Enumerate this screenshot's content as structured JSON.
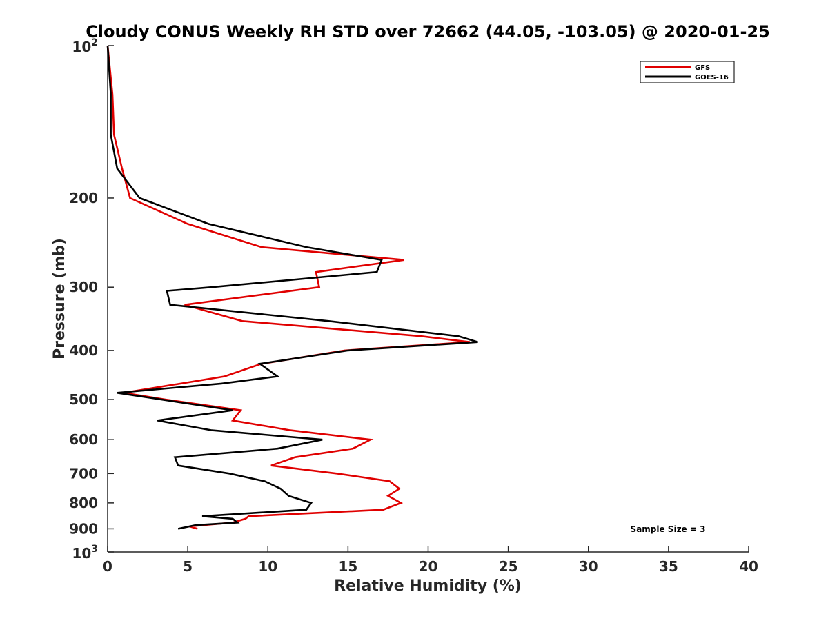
{
  "chart_data": {
    "type": "line",
    "title": "Cloudy CONUS Weekly RH STD over 72662 (44.05, -103.05) @ 2020-01-25",
    "xlabel": "Relative Humidity (%)",
    "ylabel": "Pressure (mb)",
    "xlim": [
      0,
      40
    ],
    "ylim": [
      100,
      1000
    ],
    "y_scale": "log",
    "y_reversed": true,
    "grid": false,
    "legend_position": "top-right",
    "x_ticks": [
      "0",
      "5",
      "10",
      "15",
      "20",
      "25",
      "30",
      "35",
      "40"
    ],
    "y_ticks": [
      {
        "value": 100,
        "base": "10",
        "exp": "2"
      },
      {
        "value": 200,
        "label": "200"
      },
      {
        "value": 300,
        "label": "300"
      },
      {
        "value": 400,
        "label": "400"
      },
      {
        "value": 500,
        "label": "500"
      },
      {
        "value": 600,
        "label": "600"
      },
      {
        "value": 700,
        "label": "700"
      },
      {
        "value": 800,
        "label": "800"
      },
      {
        "value": 900,
        "label": "900"
      },
      {
        "value": 1000,
        "base": "10",
        "exp": "3"
      }
    ],
    "annotation": "Sample Size = 3",
    "series": [
      {
        "name": "GFS",
        "color": "#e00000",
        "points": [
          [
            0.0,
            100
          ],
          [
            0.3,
            125
          ],
          [
            0.4,
            150
          ],
          [
            0.9,
            175
          ],
          [
            1.4,
            200
          ],
          [
            5.0,
            225
          ],
          [
            9.6,
            250
          ],
          [
            18.5,
            265
          ],
          [
            13.0,
            280
          ],
          [
            13.2,
            300
          ],
          [
            4.8,
            325
          ],
          [
            8.4,
            350
          ],
          [
            19.6,
            375
          ],
          [
            22.6,
            385
          ],
          [
            14.8,
            400
          ],
          [
            9.6,
            425
          ],
          [
            7.3,
            450
          ],
          [
            1.0,
            485
          ],
          [
            3.6,
            500
          ],
          [
            8.3,
            525
          ],
          [
            7.8,
            550
          ],
          [
            11.4,
            575
          ],
          [
            16.4,
            600
          ],
          [
            15.3,
            625
          ],
          [
            11.7,
            650
          ],
          [
            10.2,
            675
          ],
          [
            14.3,
            700
          ],
          [
            17.6,
            725
          ],
          [
            18.2,
            750
          ],
          [
            17.5,
            775
          ],
          [
            18.3,
            800
          ],
          [
            17.2,
            825
          ],
          [
            8.8,
            850
          ],
          [
            8.6,
            860
          ],
          [
            7.8,
            875
          ],
          [
            5.1,
            890
          ],
          [
            5.6,
            900
          ]
        ]
      },
      {
        "name": "GOES-16",
        "color": "#000000",
        "points": [
          [
            0.0,
            100
          ],
          [
            0.2,
            125
          ],
          [
            0.2,
            150
          ],
          [
            0.6,
            175
          ],
          [
            2.0,
            200
          ],
          [
            6.3,
            225
          ],
          [
            12.4,
            250
          ],
          [
            17.1,
            265
          ],
          [
            16.8,
            280
          ],
          [
            6.5,
            300
          ],
          [
            3.7,
            305
          ],
          [
            3.9,
            325
          ],
          [
            13.8,
            350
          ],
          [
            21.9,
            375
          ],
          [
            23.1,
            385
          ],
          [
            15.0,
            400
          ],
          [
            9.5,
            425
          ],
          [
            10.6,
            450
          ],
          [
            7.1,
            465
          ],
          [
            0.6,
            485
          ],
          [
            7.8,
            525
          ],
          [
            3.1,
            550
          ],
          [
            6.5,
            575
          ],
          [
            13.4,
            600
          ],
          [
            10.6,
            625
          ],
          [
            4.2,
            650
          ],
          [
            4.4,
            675
          ],
          [
            7.6,
            700
          ],
          [
            9.8,
            725
          ],
          [
            10.8,
            750
          ],
          [
            11.3,
            775
          ],
          [
            12.7,
            800
          ],
          [
            12.4,
            825
          ],
          [
            5.9,
            850
          ],
          [
            7.8,
            860
          ],
          [
            8.1,
            875
          ],
          [
            5.5,
            885
          ],
          [
            4.4,
            900
          ]
        ]
      }
    ]
  }
}
